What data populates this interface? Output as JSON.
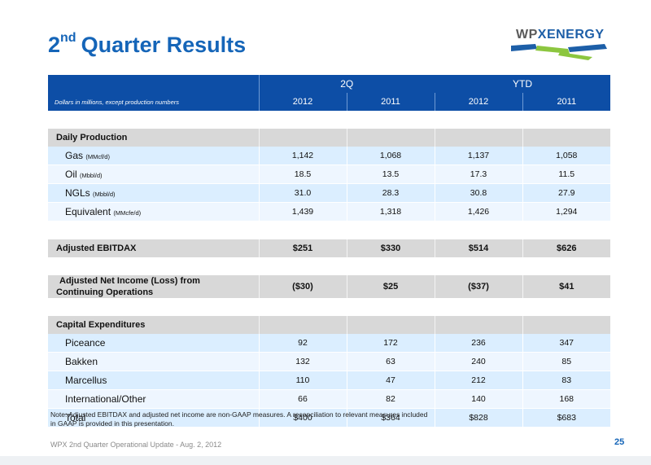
{
  "title": {
    "main": "Quarter Results",
    "sup": "nd",
    "num": "2"
  },
  "logo": {
    "wp": "WP",
    "x": "X",
    "energy": "ENERGY"
  },
  "table": {
    "group_2q": "2Q",
    "group_ytd": "YTD",
    "note_label": "Dollars in millions, except production numbers",
    "years": [
      "2012",
      "2011",
      "2012",
      "2011"
    ],
    "daily_production": {
      "label": "Daily Production",
      "rows": [
        {
          "name": "Gas",
          "unit": "(MMcf/d)",
          "values": [
            "1,142",
            "1,068",
            "1,137",
            "1,058"
          ]
        },
        {
          "name": "Oil",
          "unit": "(Mbbl/d)",
          "values": [
            "18.5",
            "13.5",
            "17.3",
            "11.5"
          ]
        },
        {
          "name": "NGLs",
          "unit": "(Mbbl/d)",
          "values": [
            "31.0",
            "28.3",
            "30.8",
            "27.9"
          ]
        },
        {
          "name": "Equivalent",
          "unit": "(MMcfe/d)",
          "values": [
            "1,439",
            "1,318",
            "1,426",
            "1,294"
          ]
        }
      ]
    },
    "ebitdax": {
      "label": "Adjusted EBITDAX",
      "values": [
        "$251",
        "$330",
        "$514",
        "$626"
      ]
    },
    "net_income": {
      "line1": "Adjusted Net Income (Loss) from",
      "line2": "Continuing Operations",
      "values": [
        "($30)",
        "$25",
        "($37)",
        "$41"
      ]
    },
    "capex": {
      "label": "Capital Expenditures",
      "rows": [
        {
          "name": "Piceance",
          "values": [
            "92",
            "172",
            "236",
            "347"
          ]
        },
        {
          "name": "Bakken",
          "values": [
            "132",
            "63",
            "240",
            "85"
          ]
        },
        {
          "name": "Marcellus",
          "values": [
            "110",
            "47",
            "212",
            "83"
          ]
        },
        {
          "name": "International/Other",
          "values": [
            "66",
            "82",
            "140",
            "168"
          ]
        },
        {
          "name": "Total",
          "values": [
            "$400",
            "$364",
            "$828",
            "$683"
          ]
        }
      ]
    }
  },
  "note": "Note:  Adjusted EBITDAX and adjusted net income are non-GAAP measures. A reconciliation to relevant measures included in GAAP is provided in this presentation.",
  "footer": "WPX 2nd Quarter Operational Update - Aug. 2, 2012",
  "page_number": "25",
  "colors": {
    "accent_blue": "#0d4ea6",
    "title_blue": "#1565b8",
    "logo_green": "#8cc63f"
  }
}
